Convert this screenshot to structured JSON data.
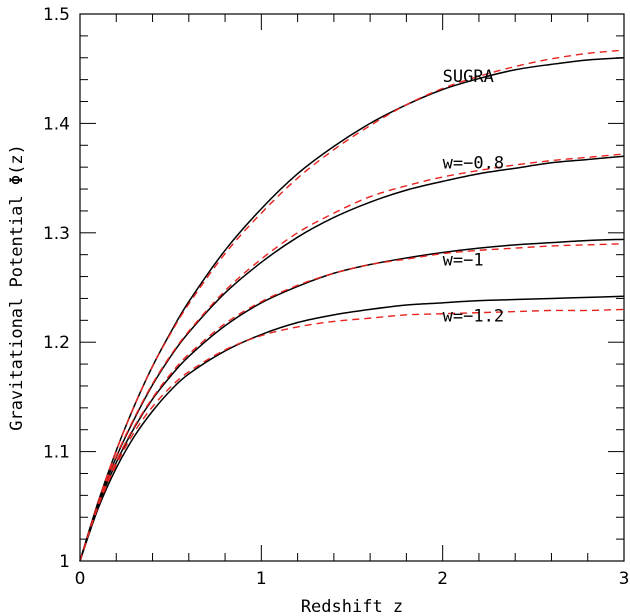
{
  "chart_data": {
    "type": "line",
    "title": "",
    "xlabel": "Redshift z",
    "ylabel": "Gravitational Potential Φ(z)",
    "xlim": [
      0,
      3
    ],
    "ylim": [
      1,
      1.5
    ],
    "xticks": [
      0,
      1,
      2,
      3
    ],
    "xtick_labels": [
      "0",
      "1",
      "2",
      "3"
    ],
    "yticks": [
      1,
      1.1,
      1.2,
      1.3,
      1.4,
      1.5
    ],
    "ytick_labels": [
      "1",
      "1.1",
      "1.2",
      "1.3",
      "1.4",
      "1.5"
    ],
    "grid": false,
    "legend": "none",
    "x": [
      0,
      0.1,
      0.2,
      0.3,
      0.4,
      0.5,
      0.6,
      0.8,
      1.0,
      1.2,
      1.4,
      1.6,
      1.8,
      2.0,
      2.2,
      2.4,
      2.6,
      2.8,
      3.0
    ],
    "series": [
      {
        "label": "SUGRA",
        "style": "solid",
        "color": "#000000",
        "values": [
          1.0,
          1.054,
          1.101,
          1.142,
          1.178,
          1.209,
          1.237,
          1.284,
          1.322,
          1.354,
          1.379,
          1.4,
          1.417,
          1.431,
          1.441,
          1.449,
          1.454,
          1.458,
          1.46
        ]
      },
      {
        "label": "SUGRA",
        "style": "dashed",
        "color": "#e8231f",
        "values": [
          1.0,
          1.054,
          1.101,
          1.142,
          1.178,
          1.208,
          1.235,
          1.281,
          1.318,
          1.35,
          1.376,
          1.398,
          1.417,
          1.432,
          1.443,
          1.452,
          1.459,
          1.464,
          1.467
        ]
      },
      {
        "label": "w=−0.8",
        "style": "solid",
        "color": "#000000",
        "values": [
          1.0,
          1.053,
          1.095,
          1.13,
          1.161,
          1.187,
          1.209,
          1.245,
          1.273,
          1.296,
          1.314,
          1.328,
          1.339,
          1.347,
          1.354,
          1.359,
          1.364,
          1.367,
          1.37
        ]
      },
      {
        "label": "w=−0.8",
        "style": "dashed",
        "color": "#e8231f",
        "values": [
          1.0,
          1.053,
          1.096,
          1.131,
          1.162,
          1.188,
          1.21,
          1.247,
          1.276,
          1.3,
          1.318,
          1.333,
          1.343,
          1.351,
          1.357,
          1.362,
          1.366,
          1.369,
          1.372
        ]
      },
      {
        "label": "w=−1",
        "style": "solid",
        "color": "#000000",
        "values": [
          1.0,
          1.051,
          1.09,
          1.122,
          1.148,
          1.169,
          1.187,
          1.215,
          1.236,
          1.251,
          1.263,
          1.271,
          1.277,
          1.282,
          1.286,
          1.289,
          1.291,
          1.293,
          1.294
        ]
      },
      {
        "label": "w=−1",
        "style": "dashed",
        "color": "#e8231f",
        "values": [
          1.0,
          1.051,
          1.091,
          1.123,
          1.149,
          1.171,
          1.189,
          1.217,
          1.237,
          1.252,
          1.263,
          1.271,
          1.276,
          1.281,
          1.284,
          1.286,
          1.288,
          1.289,
          1.29
        ]
      },
      {
        "label": "w=−1.2",
        "style": "solid",
        "color": "#000000",
        "values": [
          1.0,
          1.048,
          1.085,
          1.114,
          1.137,
          1.156,
          1.171,
          1.192,
          1.207,
          1.218,
          1.225,
          1.23,
          1.234,
          1.236,
          1.238,
          1.239,
          1.24,
          1.241,
          1.242
        ]
      },
      {
        "label": "w=−1.2",
        "style": "dashed",
        "color": "#e8231f",
        "values": [
          1.0,
          1.05,
          1.088,
          1.118,
          1.141,
          1.159,
          1.173,
          1.193,
          1.206,
          1.214,
          1.219,
          1.222,
          1.225,
          1.226,
          1.227,
          1.228,
          1.229,
          1.229,
          1.23
        ]
      }
    ],
    "annotations": [
      {
        "text": "SUGRA",
        "x": 2.0,
        "y": 1.438
      },
      {
        "text": "w=−0.8",
        "x": 2.0,
        "y": 1.359
      },
      {
        "text": "w=−1",
        "x": 2.0,
        "y": 1.27
      },
      {
        "text": "w=−1.2",
        "x": 2.0,
        "y": 1.219
      }
    ]
  }
}
